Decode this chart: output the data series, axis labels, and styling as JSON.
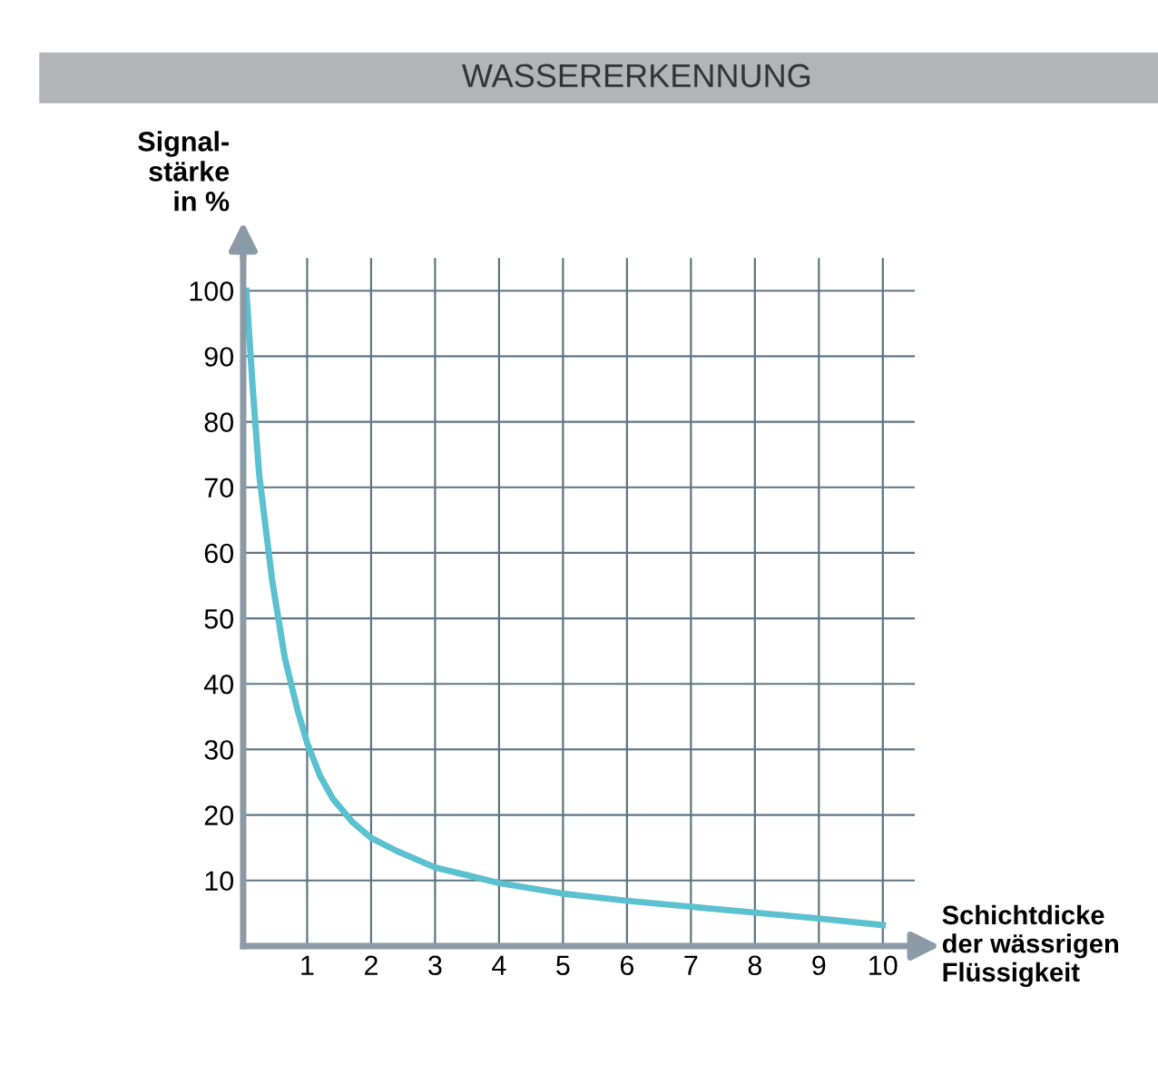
{
  "chart_data": {
    "type": "line",
    "title": "WASSERERKENNUNG",
    "ylabel": "Signal-\nstärke\nin %",
    "xlabel": "Schichtdicke\nder wässrigen\nFlüssigkeit",
    "x": [
      0.05,
      0.15,
      0.25,
      0.35,
      0.45,
      0.55,
      0.65,
      0.75,
      0.85,
      1.0,
      1.2,
      1.4,
      1.7,
      2,
      2.4,
      3,
      3.5,
      4,
      5,
      6,
      7,
      8,
      9,
      10
    ],
    "series": [
      {
        "color": "#5bc0d0",
        "values": [
          100,
          85,
          72,
          64,
          56,
          50,
          44,
          40,
          36,
          31,
          26,
          22.5,
          19,
          16.5,
          14.5,
          12,
          10.8,
          9.6,
          8,
          6.9,
          6,
          5.1,
          4.2,
          3.2
        ]
      }
    ],
    "xlim": [
      0,
      10.5
    ],
    "ylim": [
      0,
      105
    ],
    "xticks": [
      1,
      2,
      3,
      4,
      5,
      6,
      7,
      8,
      9,
      10
    ],
    "yticks": [
      10,
      20,
      30,
      40,
      50,
      60,
      70,
      80,
      90,
      100
    ],
    "grid": true,
    "marker": "none",
    "line_style": "solid"
  }
}
